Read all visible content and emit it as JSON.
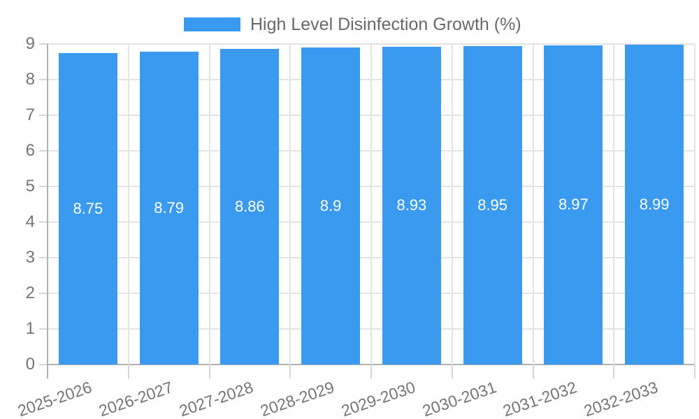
{
  "chart_data": {
    "type": "bar",
    "title": "",
    "legend_position": "top",
    "legend_entries": [
      "High Level Disinfection Growth (%)"
    ],
    "categories": [
      "2025-2026",
      "2026-2027",
      "2027-2028",
      "2028-2029",
      "2029-2030",
      "2030-2031",
      "2031-2032",
      "2032-2033"
    ],
    "series": [
      {
        "name": "High Level Disinfection Growth (%)",
        "values": [
          8.75,
          8.79,
          8.86,
          8.9,
          8.93,
          8.95,
          8.97,
          8.99
        ]
      }
    ],
    "value_labels": [
      "8.75",
      "8.79",
      "8.86",
      "8.9",
      "8.93",
      "8.95",
      "8.97",
      "8.99"
    ],
    "xlabel": "",
    "ylabel": "",
    "ylim": [
      0,
      9
    ],
    "y_ticks": [
      "0",
      "1",
      "2",
      "3",
      "4",
      "5",
      "6",
      "7",
      "8",
      "9"
    ],
    "grid": true,
    "x_label_rotation_deg": -19,
    "colors": {
      "bar": "#3A9AF0",
      "grid": "#E4E4E4",
      "axis": "#B3B3B3",
      "tick": "#D6D6D6",
      "axis_label": "#757575",
      "legend_text": "#696969",
      "value_label": "#FFFFFF",
      "background": "#FFFFFF"
    }
  }
}
